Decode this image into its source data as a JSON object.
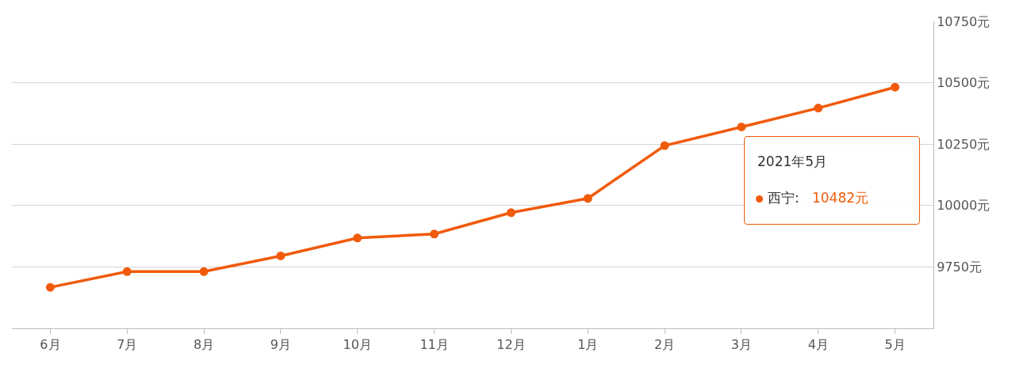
{
  "chart_data": {
    "type": "line",
    "categories": [
      "6月",
      "7月",
      "8月",
      "9月",
      "10月",
      "11月",
      "12月",
      "1月",
      "2月",
      "3月",
      "4月",
      "5月"
    ],
    "series": [
      {
        "name": "西宁:",
        "color": "#f05a0a",
        "values": [
          9667,
          9731,
          9731,
          9795,
          9868,
          9884,
          9971,
          10029,
          10244,
          10320,
          10397,
          10482
        ]
      }
    ],
    "ylim": [
      9500,
      10750
    ],
    "yticks": [
      {
        "value": 9750,
        "label": "9750元"
      },
      {
        "value": 10000,
        "label": "10000元"
      },
      {
        "value": 10250,
        "label": "10250元"
      },
      {
        "value": 10500,
        "label": "10500元"
      },
      {
        "value": 10750,
        "label": "10750元"
      }
    ],
    "grid": "y",
    "legend": "right",
    "marker": "circle",
    "line_style": "solid",
    "annotations": [
      "2021年5月",
      "10482元"
    ]
  }
}
